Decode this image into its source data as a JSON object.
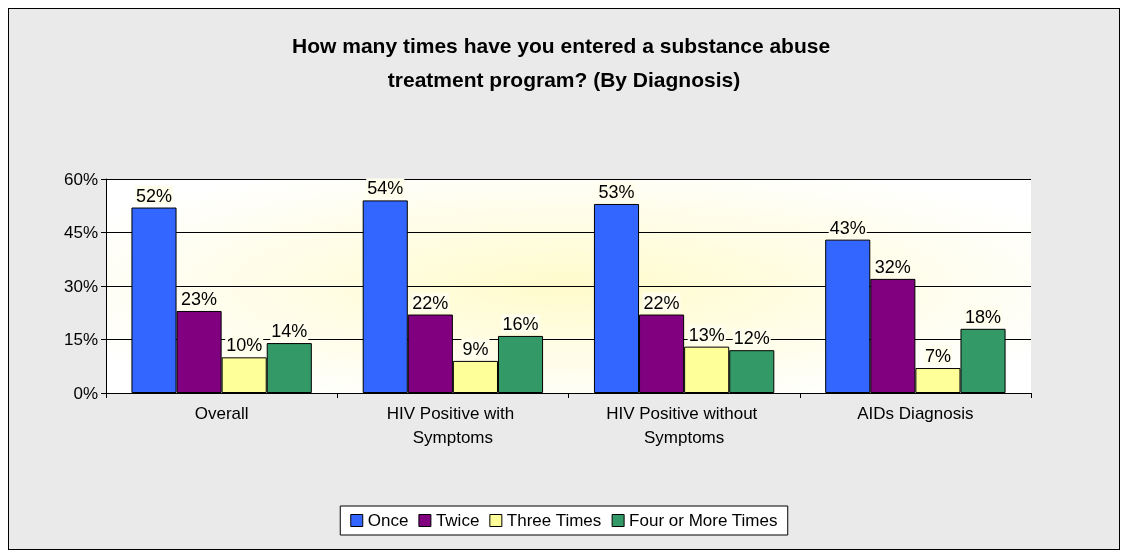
{
  "chart_data": {
    "type": "bar",
    "title": "How many times have you entered a substance abuse treatment program? (By Diagnosis)",
    "categories": [
      "Overall",
      "HIV Positive with Symptoms",
      "HIV Positive without Symptoms",
      "AIDs Diagnosis"
    ],
    "series": [
      {
        "name": "Once",
        "color": "#3366ff",
        "values": [
          52,
          54,
          53,
          43
        ],
        "value_labels": [
          "52%",
          "54%",
          "53%",
          "43%"
        ]
      },
      {
        "name": "Twice",
        "color": "#800080",
        "values": [
          23,
          22,
          22,
          32
        ],
        "value_labels": [
          "23%",
          "22%",
          "22%",
          "32%"
        ]
      },
      {
        "name": "Three Times",
        "color": "#ffff99",
        "values": [
          10,
          9,
          13,
          7
        ],
        "value_labels": [
          "10%",
          "9%",
          "13%",
          "7%"
        ]
      },
      {
        "name": "Four or More Times",
        "color": "#339966",
        "values": [
          14,
          16,
          12,
          18
        ],
        "value_labels": [
          "14%",
          "16%",
          "12%",
          "18%"
        ]
      }
    ],
    "ylim": [
      0,
      60
    ],
    "yticks": [
      {
        "value": 0,
        "label": "0%"
      },
      {
        "value": 15,
        "label": "15%"
      },
      {
        "value": 30,
        "label": "30%"
      },
      {
        "value": 45,
        "label": "45%"
      },
      {
        "value": 60,
        "label": "60%"
      }
    ],
    "grid": "y",
    "legend": "bottom"
  }
}
